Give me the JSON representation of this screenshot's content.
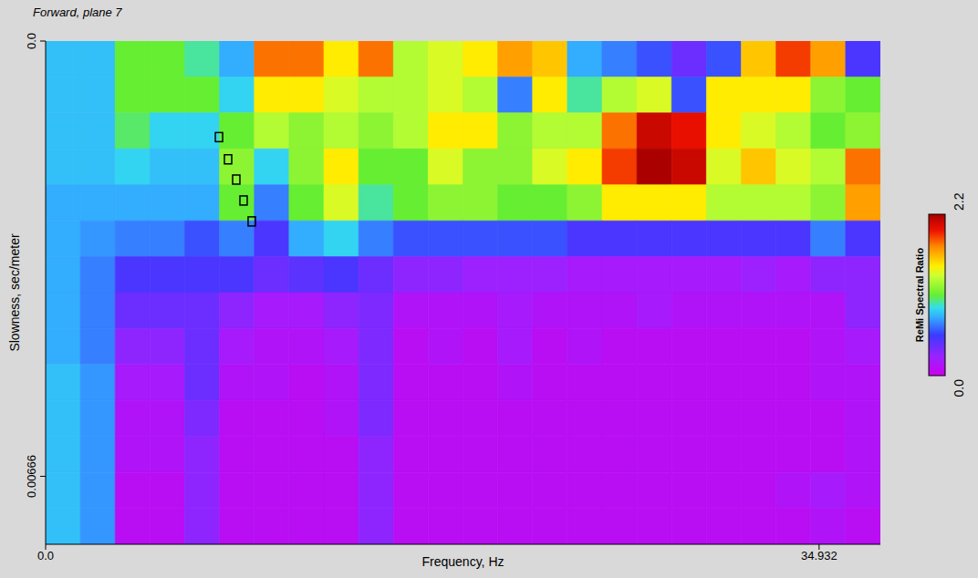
{
  "chart_data": {
    "type": "heatmap",
    "title": "Forward, plane 7",
    "x_label": "Frequency, Hz",
    "y_label": "Slowness, sec/meter",
    "xlim": [
      0,
      37.7
    ],
    "xticks": [
      {
        "value": 0,
        "label": "0.0"
      },
      34.932
    ],
    "ylim": [
      0,
      0.0077
    ],
    "yticks": [
      {
        "value": 0,
        "label": "0.0"
      },
      0.00666
    ],
    "heatmap": {
      "x": [
        0.785,
        2.356,
        3.927,
        5.498,
        7.069,
        8.639,
        10.21,
        11.781,
        13.352,
        14.923,
        16.493,
        18.064,
        19.635,
        21.206,
        22.777,
        24.347,
        25.918,
        27.489,
        29.06,
        30.631,
        32.201,
        33.772,
        35.343,
        36.914
      ],
      "y": [
        0.000275,
        0.000825,
        0.001375,
        0.001925,
        0.002475,
        0.003025,
        0.003575,
        0.004125,
        0.004675,
        0.005225,
        0.005775,
        0.006325,
        0.006875,
        0.007425
      ],
      "values": [
        [
          0.85,
          0.85,
          1.1,
          1.1,
          1.0,
          0.8,
          1.8,
          1.8,
          1.5,
          1.8,
          1.3,
          1.4,
          1.5,
          1.7,
          1.6,
          0.8,
          0.7,
          0.6,
          0.4,
          0.6,
          1.6,
          1.9,
          1.7,
          0.5
        ],
        [
          0.85,
          0.85,
          1.1,
          1.1,
          1.1,
          0.9,
          1.5,
          1.5,
          1.4,
          1.3,
          1.3,
          1.4,
          1.3,
          0.7,
          1.5,
          1.0,
          1.3,
          1.4,
          0.6,
          1.5,
          1.5,
          1.5,
          1.2,
          1.1
        ],
        [
          0.85,
          0.85,
          1.05,
          0.9,
          0.9,
          1.1,
          1.3,
          1.2,
          1.3,
          1.2,
          1.3,
          1.5,
          1.5,
          1.2,
          1.3,
          1.3,
          1.8,
          2.1,
          2.0,
          1.5,
          1.4,
          1.3,
          1.1,
          1.2
        ],
        [
          0.85,
          0.85,
          0.9,
          0.85,
          0.85,
          1.2,
          0.9,
          1.2,
          1.5,
          1.1,
          1.1,
          1.4,
          1.2,
          1.2,
          1.4,
          1.5,
          1.9,
          2.2,
          2.1,
          1.4,
          1.6,
          1.4,
          1.3,
          1.8
        ],
        [
          0.8,
          0.8,
          0.8,
          0.8,
          0.8,
          1.1,
          0.7,
          1.1,
          1.4,
          1.0,
          1.1,
          1.2,
          1.2,
          1.1,
          1.1,
          1.2,
          1.5,
          1.5,
          1.5,
          1.3,
          1.3,
          1.3,
          1.2,
          1.7
        ],
        [
          0.8,
          0.75,
          0.7,
          0.7,
          0.6,
          0.7,
          0.5,
          0.8,
          0.9,
          0.7,
          0.6,
          0.6,
          0.6,
          0.6,
          0.6,
          0.5,
          0.5,
          0.5,
          0.5,
          0.5,
          0.5,
          0.5,
          0.7,
          0.5
        ],
        [
          0.8,
          0.7,
          0.5,
          0.5,
          0.5,
          0.5,
          0.4,
          0.45,
          0.5,
          0.4,
          0.3,
          0.3,
          0.25,
          0.25,
          0.25,
          0.2,
          0.2,
          0.2,
          0.2,
          0.2,
          0.25,
          0.2,
          0.3,
          0.3
        ],
        [
          0.8,
          0.7,
          0.4,
          0.4,
          0.4,
          0.3,
          0.2,
          0.2,
          0.3,
          0.35,
          0.15,
          0.15,
          0.15,
          0.2,
          0.15,
          0.15,
          0.15,
          0.2,
          0.15,
          0.15,
          0.15,
          0.15,
          0.15,
          0.3
        ],
        [
          0.8,
          0.7,
          0.3,
          0.3,
          0.4,
          0.2,
          0.15,
          0.15,
          0.2,
          0.35,
          0.1,
          0.15,
          0.1,
          0.2,
          0.1,
          0.15,
          0.1,
          0.1,
          0.1,
          0.1,
          0.1,
          0.1,
          0.15,
          0.2
        ],
        [
          0.85,
          0.75,
          0.2,
          0.2,
          0.4,
          0.15,
          0.15,
          0.1,
          0.15,
          0.35,
          0.1,
          0.1,
          0.1,
          0.15,
          0.1,
          0.1,
          0.1,
          0.1,
          0.1,
          0.1,
          0.1,
          0.1,
          0.15,
          0.15
        ],
        [
          0.85,
          0.75,
          0.15,
          0.15,
          0.35,
          0.1,
          0.1,
          0.1,
          0.15,
          0.35,
          0.1,
          0.1,
          0.1,
          0.1,
          0.1,
          0.1,
          0.1,
          0.1,
          0.1,
          0.1,
          0.1,
          0.1,
          0.1,
          0.15
        ],
        [
          0.85,
          0.75,
          0.15,
          0.15,
          0.3,
          0.1,
          0.1,
          0.1,
          0.1,
          0.3,
          0.1,
          0.1,
          0.1,
          0.1,
          0.1,
          0.1,
          0.1,
          0.1,
          0.1,
          0.1,
          0.1,
          0.1,
          0.1,
          0.15
        ],
        [
          0.85,
          0.75,
          0.1,
          0.1,
          0.3,
          0.1,
          0.1,
          0.1,
          0.1,
          0.3,
          0.1,
          0.1,
          0.1,
          0.1,
          0.1,
          0.1,
          0.1,
          0.1,
          0.1,
          0.1,
          0.1,
          0.15,
          0.2,
          0.15
        ],
        [
          0.85,
          0.75,
          0.1,
          0.1,
          0.3,
          0.1,
          0.1,
          0.1,
          0.1,
          0.3,
          0.1,
          0.1,
          0.1,
          0.1,
          0.1,
          0.1,
          0.1,
          0.1,
          0.1,
          0.1,
          0.1,
          0.1,
          0.15,
          0.1
        ]
      ]
    },
    "colorbar": {
      "label": "ReMi Spectral Ratio",
      "range": [
        0,
        2.2
      ],
      "ticks": [
        {
          "value": 0,
          "label": "0.0"
        },
        2.2
      ]
    },
    "picks": {
      "x": [
        7.83,
        8.24,
        8.61,
        8.94,
        9.31
      ],
      "y": [
        0.00147,
        0.00181,
        0.00212,
        0.00244,
        0.00276
      ],
      "marker": "square",
      "color": "#000000"
    }
  }
}
